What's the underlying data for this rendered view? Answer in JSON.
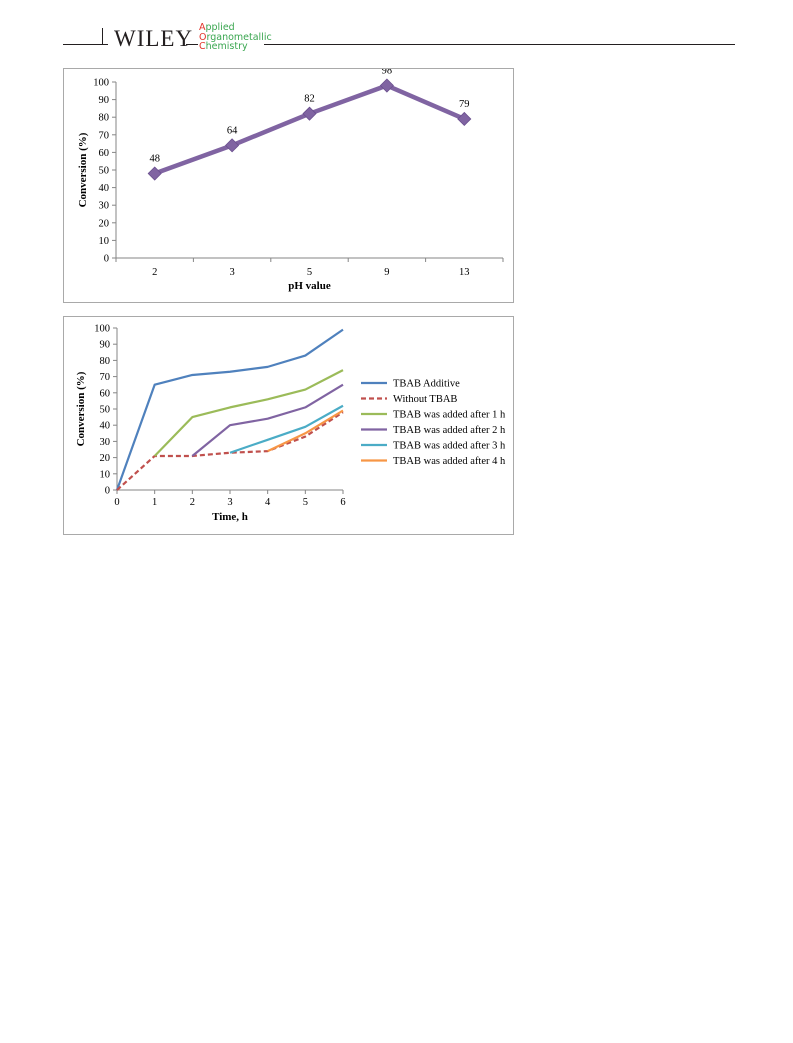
{
  "header": {
    "publisher": "WILEY",
    "journal_lines": [
      {
        "initial": "A",
        "rest": "pplied"
      },
      {
        "initial": "O",
        "rest": "rganometallic"
      },
      {
        "initial": "C",
        "rest": "hemistry"
      }
    ],
    "colors": {
      "journal_initial": "#e2342a",
      "journal_text": "#3aa650",
      "rule": "#231f20"
    }
  },
  "chart_data": [
    {
      "type": "line",
      "title": "",
      "xlabel": "pH value",
      "ylabel": "Conversion (%)",
      "categories": [
        "2",
        "3",
        "5",
        "9",
        "13"
      ],
      "series": [
        {
          "values": [
            48,
            64,
            82,
            98,
            79
          ],
          "color": "#8064a2",
          "marker": "diamond"
        }
      ],
      "data_labels": [
        "48",
        "64",
        "82",
        "98",
        "79"
      ],
      "ylim": [
        0,
        100
      ],
      "yticks": [
        0,
        10,
        20,
        30,
        40,
        50,
        60,
        70,
        80,
        90,
        100
      ],
      "grid": false,
      "legend": "none"
    },
    {
      "type": "line",
      "title": "",
      "xlabel": "Time, h",
      "ylabel": "Conversion (%)",
      "xlim": [
        0,
        6
      ],
      "xticks": [
        0,
        1,
        2,
        3,
        4,
        5,
        6
      ],
      "ylim": [
        0,
        100
      ],
      "yticks": [
        0,
        10,
        20,
        30,
        40,
        50,
        60,
        70,
        80,
        90,
        100
      ],
      "grid": false,
      "legend": "right",
      "series": [
        {
          "name": "TBAB Additive",
          "color": "#4f81bd",
          "dash": false,
          "x": [
            0,
            1,
            2,
            3,
            4,
            5,
            6
          ],
          "y": [
            0,
            65,
            71,
            73,
            76,
            83,
            99
          ]
        },
        {
          "name": "Without TBAB",
          "color": "#c0504d",
          "dash": true,
          "x": [
            0,
            1,
            2,
            3,
            4,
            5,
            6
          ],
          "y": [
            0,
            21,
            21,
            23,
            24,
            33,
            48
          ]
        },
        {
          "name": "TBAB was added after 1 h",
          "color": "#9bbb59",
          "dash": false,
          "x": [
            1,
            2,
            3,
            4,
            5,
            6
          ],
          "y": [
            21,
            45,
            51,
            56,
            62,
            74
          ]
        },
        {
          "name": "TBAB was added after 2 h",
          "color": "#8064a2",
          "dash": false,
          "x": [
            2,
            3,
            4,
            5,
            6
          ],
          "y": [
            21,
            40,
            44,
            51,
            65
          ]
        },
        {
          "name": "TBAB was added after 3 h",
          "color": "#4bacc6",
          "dash": false,
          "x": [
            3,
            4,
            5,
            6
          ],
          "y": [
            23,
            31,
            39,
            52
          ]
        },
        {
          "name": "TBAB was added after 4 h",
          "color": "#f79646",
          "dash": false,
          "x": [
            4,
            5,
            6
          ],
          "y": [
            24,
            35,
            49
          ]
        }
      ]
    }
  ]
}
